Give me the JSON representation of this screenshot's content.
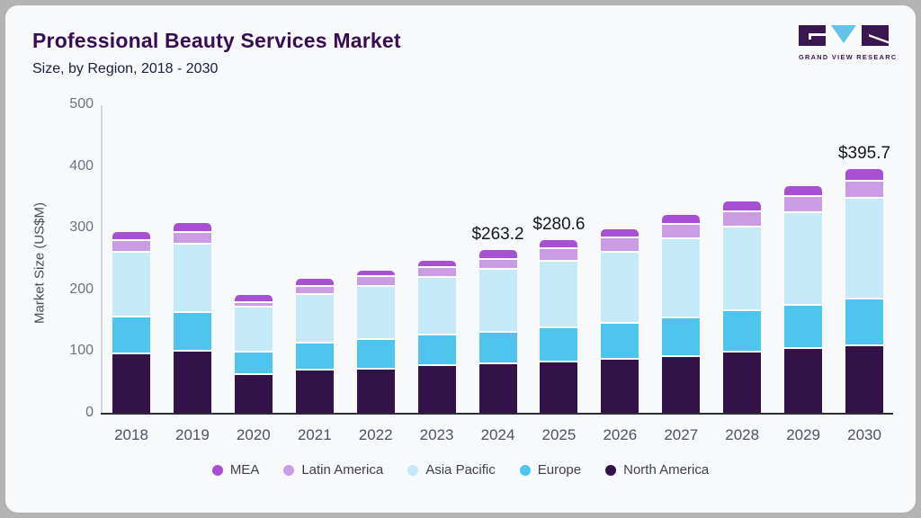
{
  "logo": {
    "text": "GRAND VIEW RESEARCH"
  },
  "colors": {
    "card_bg": "#f7f9fb",
    "frame": "#b3b3b3",
    "title_text": "#380d53",
    "subtitle_text": "#20203a",
    "axis_line": "#d4d7dc",
    "baseline": "#2d2d36",
    "tick_text": "#6b7280",
    "xlabel_text": "#4b5563",
    "value_label_text": "#15151d",
    "legend_text": "#3f3f46",
    "logo_purple": "#3b1650",
    "logo_blue": "#62c2e8"
  },
  "chart_data": {
    "type": "stacked-bar",
    "title": "Professional Beauty Services Market",
    "subtitle": "Size, by Region, 2018 - 2030",
    "ylabel": "Market Size (US$M)",
    "ylim": [
      0,
      500
    ],
    "yticks": [
      0,
      100,
      200,
      300,
      400,
      500
    ],
    "grid": false,
    "legend_position": "bottom",
    "categories": [
      "2018",
      "2019",
      "2020",
      "2021",
      "2022",
      "2023",
      "2024",
      "2025",
      "2026",
      "2027",
      "2028",
      "2029",
      "2030"
    ],
    "series": [
      {
        "name": "North America",
        "color": "#321247",
        "values": [
          95,
          99,
          61,
          68,
          70,
          76,
          78,
          82,
          86,
          90,
          97,
          103,
          108
        ]
      },
      {
        "name": "Europe",
        "color": "#4ec4ef",
        "values": [
          60,
          63,
          37,
          44,
          48,
          49,
          52,
          55,
          58,
          63,
          67,
          70,
          75
        ]
      },
      {
        "name": "Asia Pacific",
        "color": "#c6e9f8",
        "values": [
          105,
          110,
          72,
          79,
          86,
          94,
          102,
          108,
          116,
          129,
          137,
          150,
          164
        ]
      },
      {
        "name": "Latin America",
        "color": "#c99ce3",
        "values": [
          19,
          19,
          8,
          13,
          16,
          15,
          16,
          20,
          23,
          23,
          24,
          27,
          28
        ]
      },
      {
        "name": "MEA",
        "color": "#a750d4",
        "values": [
          14,
          16,
          13,
          13,
          11,
          12,
          15.2,
          15.6,
          15,
          15,
          17,
          18,
          20.7
        ]
      }
    ],
    "totals": [
      293,
      307,
      191,
      217,
      231,
      246,
      263.2,
      280.6,
      298,
      320,
      342,
      368,
      395.7
    ],
    "value_labels": {
      "2024": "$263.2",
      "2025": "$280.6",
      "2030": "$395.7"
    },
    "legend_order": [
      "MEA",
      "Latin America",
      "Asia Pacific",
      "Europe",
      "North America"
    ]
  }
}
